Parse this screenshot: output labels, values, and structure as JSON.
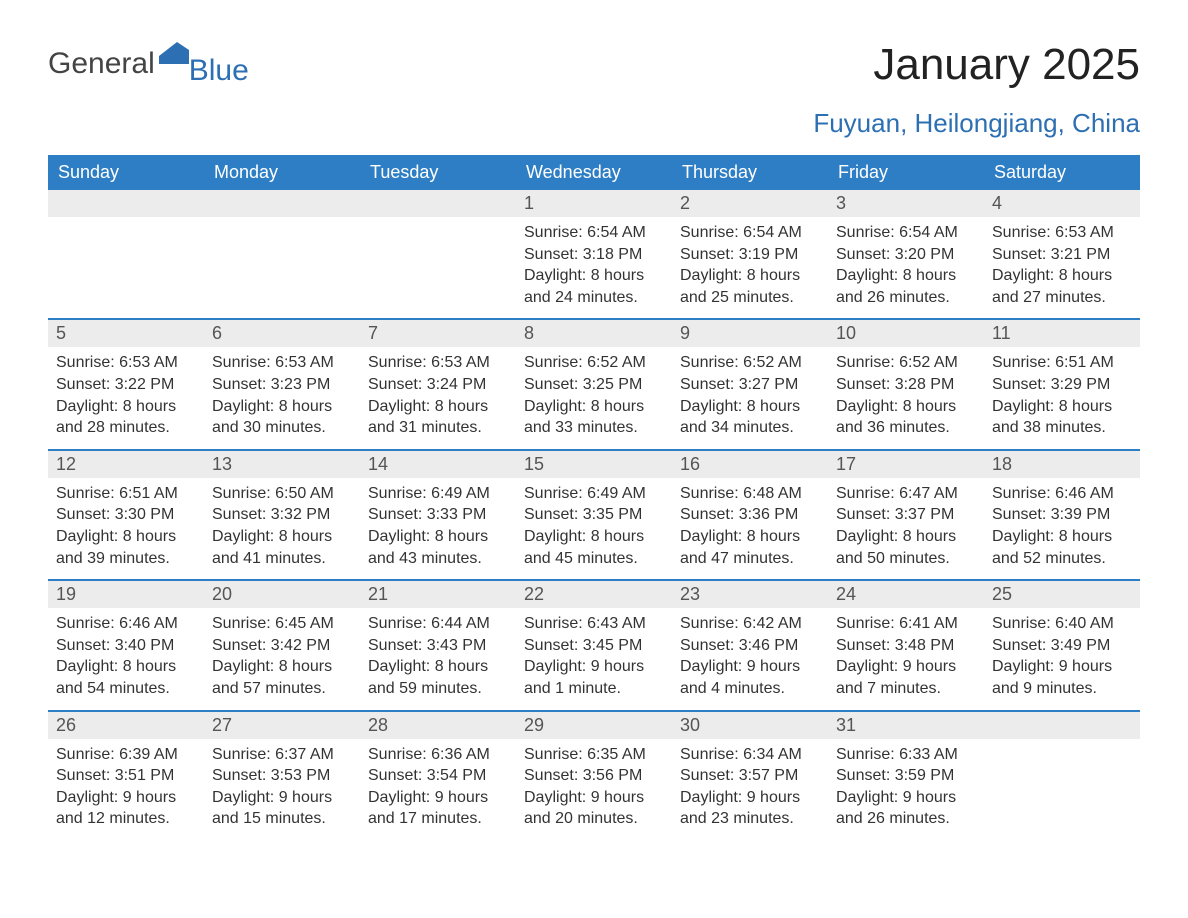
{
  "logo": {
    "text1": "General",
    "text2": "Blue"
  },
  "title": "January 2025",
  "location": "Fuyuan, Heilongjiang, China",
  "colors": {
    "header_bg": "#2d7ec4",
    "accent": "#2d6fb3",
    "daynum_bg": "#ececec",
    "body_bg": "#ffffff",
    "text": "#333333"
  },
  "typography": {
    "title_fontsize": 44,
    "location_fontsize": 26,
    "header_fontsize": 18,
    "daynum_fontsize": 18,
    "body_fontsize": 16
  },
  "calendar": {
    "day_names": [
      "Sunday",
      "Monday",
      "Tuesday",
      "Wednesday",
      "Thursday",
      "Friday",
      "Saturday"
    ],
    "weeks": [
      [
        null,
        null,
        null,
        {
          "num": "1",
          "sunrise": "Sunrise: 6:54 AM",
          "sunset": "Sunset: 3:18 PM",
          "daylight1": "Daylight: 8 hours",
          "daylight2": "and 24 minutes."
        },
        {
          "num": "2",
          "sunrise": "Sunrise: 6:54 AM",
          "sunset": "Sunset: 3:19 PM",
          "daylight1": "Daylight: 8 hours",
          "daylight2": "and 25 minutes."
        },
        {
          "num": "3",
          "sunrise": "Sunrise: 6:54 AM",
          "sunset": "Sunset: 3:20 PM",
          "daylight1": "Daylight: 8 hours",
          "daylight2": "and 26 minutes."
        },
        {
          "num": "4",
          "sunrise": "Sunrise: 6:53 AM",
          "sunset": "Sunset: 3:21 PM",
          "daylight1": "Daylight: 8 hours",
          "daylight2": "and 27 minutes."
        }
      ],
      [
        {
          "num": "5",
          "sunrise": "Sunrise: 6:53 AM",
          "sunset": "Sunset: 3:22 PM",
          "daylight1": "Daylight: 8 hours",
          "daylight2": "and 28 minutes."
        },
        {
          "num": "6",
          "sunrise": "Sunrise: 6:53 AM",
          "sunset": "Sunset: 3:23 PM",
          "daylight1": "Daylight: 8 hours",
          "daylight2": "and 30 minutes."
        },
        {
          "num": "7",
          "sunrise": "Sunrise: 6:53 AM",
          "sunset": "Sunset: 3:24 PM",
          "daylight1": "Daylight: 8 hours",
          "daylight2": "and 31 minutes."
        },
        {
          "num": "8",
          "sunrise": "Sunrise: 6:52 AM",
          "sunset": "Sunset: 3:25 PM",
          "daylight1": "Daylight: 8 hours",
          "daylight2": "and 33 minutes."
        },
        {
          "num": "9",
          "sunrise": "Sunrise: 6:52 AM",
          "sunset": "Sunset: 3:27 PM",
          "daylight1": "Daylight: 8 hours",
          "daylight2": "and 34 minutes."
        },
        {
          "num": "10",
          "sunrise": "Sunrise: 6:52 AM",
          "sunset": "Sunset: 3:28 PM",
          "daylight1": "Daylight: 8 hours",
          "daylight2": "and 36 minutes."
        },
        {
          "num": "11",
          "sunrise": "Sunrise: 6:51 AM",
          "sunset": "Sunset: 3:29 PM",
          "daylight1": "Daylight: 8 hours",
          "daylight2": "and 38 minutes."
        }
      ],
      [
        {
          "num": "12",
          "sunrise": "Sunrise: 6:51 AM",
          "sunset": "Sunset: 3:30 PM",
          "daylight1": "Daylight: 8 hours",
          "daylight2": "and 39 minutes."
        },
        {
          "num": "13",
          "sunrise": "Sunrise: 6:50 AM",
          "sunset": "Sunset: 3:32 PM",
          "daylight1": "Daylight: 8 hours",
          "daylight2": "and 41 minutes."
        },
        {
          "num": "14",
          "sunrise": "Sunrise: 6:49 AM",
          "sunset": "Sunset: 3:33 PM",
          "daylight1": "Daylight: 8 hours",
          "daylight2": "and 43 minutes."
        },
        {
          "num": "15",
          "sunrise": "Sunrise: 6:49 AM",
          "sunset": "Sunset: 3:35 PM",
          "daylight1": "Daylight: 8 hours",
          "daylight2": "and 45 minutes."
        },
        {
          "num": "16",
          "sunrise": "Sunrise: 6:48 AM",
          "sunset": "Sunset: 3:36 PM",
          "daylight1": "Daylight: 8 hours",
          "daylight2": "and 47 minutes."
        },
        {
          "num": "17",
          "sunrise": "Sunrise: 6:47 AM",
          "sunset": "Sunset: 3:37 PM",
          "daylight1": "Daylight: 8 hours",
          "daylight2": "and 50 minutes."
        },
        {
          "num": "18",
          "sunrise": "Sunrise: 6:46 AM",
          "sunset": "Sunset: 3:39 PM",
          "daylight1": "Daylight: 8 hours",
          "daylight2": "and 52 minutes."
        }
      ],
      [
        {
          "num": "19",
          "sunrise": "Sunrise: 6:46 AM",
          "sunset": "Sunset: 3:40 PM",
          "daylight1": "Daylight: 8 hours",
          "daylight2": "and 54 minutes."
        },
        {
          "num": "20",
          "sunrise": "Sunrise: 6:45 AM",
          "sunset": "Sunset: 3:42 PM",
          "daylight1": "Daylight: 8 hours",
          "daylight2": "and 57 minutes."
        },
        {
          "num": "21",
          "sunrise": "Sunrise: 6:44 AM",
          "sunset": "Sunset: 3:43 PM",
          "daylight1": "Daylight: 8 hours",
          "daylight2": "and 59 minutes."
        },
        {
          "num": "22",
          "sunrise": "Sunrise: 6:43 AM",
          "sunset": "Sunset: 3:45 PM",
          "daylight1": "Daylight: 9 hours",
          "daylight2": "and 1 minute."
        },
        {
          "num": "23",
          "sunrise": "Sunrise: 6:42 AM",
          "sunset": "Sunset: 3:46 PM",
          "daylight1": "Daylight: 9 hours",
          "daylight2": "and 4 minutes."
        },
        {
          "num": "24",
          "sunrise": "Sunrise: 6:41 AM",
          "sunset": "Sunset: 3:48 PM",
          "daylight1": "Daylight: 9 hours",
          "daylight2": "and 7 minutes."
        },
        {
          "num": "25",
          "sunrise": "Sunrise: 6:40 AM",
          "sunset": "Sunset: 3:49 PM",
          "daylight1": "Daylight: 9 hours",
          "daylight2": "and 9 minutes."
        }
      ],
      [
        {
          "num": "26",
          "sunrise": "Sunrise: 6:39 AM",
          "sunset": "Sunset: 3:51 PM",
          "daylight1": "Daylight: 9 hours",
          "daylight2": "and 12 minutes."
        },
        {
          "num": "27",
          "sunrise": "Sunrise: 6:37 AM",
          "sunset": "Sunset: 3:53 PM",
          "daylight1": "Daylight: 9 hours",
          "daylight2": "and 15 minutes."
        },
        {
          "num": "28",
          "sunrise": "Sunrise: 6:36 AM",
          "sunset": "Sunset: 3:54 PM",
          "daylight1": "Daylight: 9 hours",
          "daylight2": "and 17 minutes."
        },
        {
          "num": "29",
          "sunrise": "Sunrise: 6:35 AM",
          "sunset": "Sunset: 3:56 PM",
          "daylight1": "Daylight: 9 hours",
          "daylight2": "and 20 minutes."
        },
        {
          "num": "30",
          "sunrise": "Sunrise: 6:34 AM",
          "sunset": "Sunset: 3:57 PM",
          "daylight1": "Daylight: 9 hours",
          "daylight2": "and 23 minutes."
        },
        {
          "num": "31",
          "sunrise": "Sunrise: 6:33 AM",
          "sunset": "Sunset: 3:59 PM",
          "daylight1": "Daylight: 9 hours",
          "daylight2": "and 26 minutes."
        },
        null
      ]
    ]
  }
}
